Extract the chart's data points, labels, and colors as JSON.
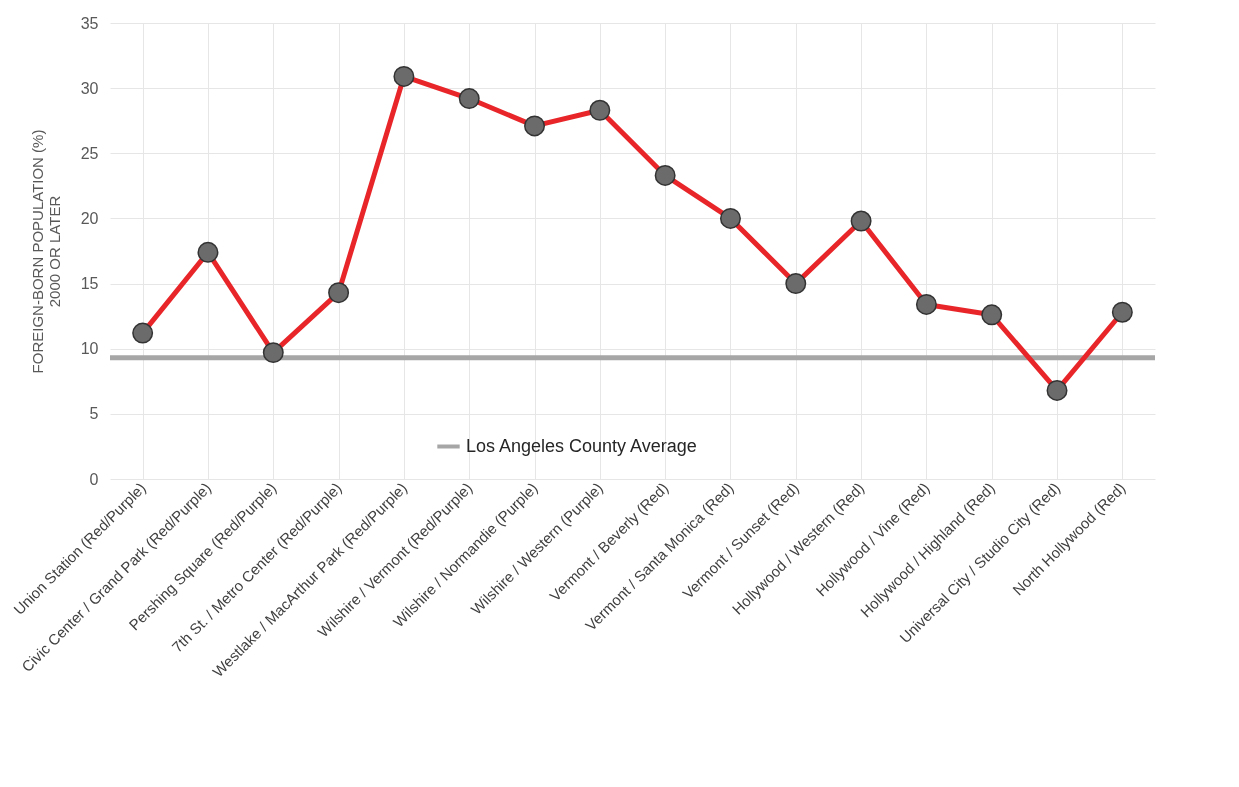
{
  "chart_data": {
    "type": "line",
    "ylabel": "FOREIGN-BORN POPULATION (%)\n2000 OR LATER",
    "categories": [
      "Union Station (Red/Purple)",
      "Civic Center / Grand Park (Red/Purple)",
      "Pershing Square (Red/Purple)",
      "7th St. / Metro Center (Red/Purple)",
      "Westlake / MacArthur Park (Red/Purple)",
      "Wilshire / Vermont (Red/Purple)",
      "Wilshire / Normandie (Purple)",
      "Wilshire / Western (Purple)",
      "Vermont / Beverly (Red)",
      "Vermont / Santa Monica (Red)",
      "Vermont / Sunset (Red)",
      "Hollywood / Western (Red)",
      "Hollywood / Vine (Red)",
      "Hollywood / Highland (Red)",
      "Universal City / Studio City (Red)",
      "North Hollywood (Red)"
    ],
    "series": [
      {
        "color": "#e8262a",
        "values": [
          11.2,
          17.4,
          9.7,
          14.3,
          30.9,
          29.2,
          27.1,
          28.3,
          23.3,
          20.0,
          15.0,
          19.8,
          13.4,
          12.6,
          6.8,
          12.8
        ]
      }
    ],
    "ylim": [
      0,
      35
    ],
    "yticks": [
      0,
      5,
      10,
      15,
      20,
      25,
      30,
      35
    ],
    "grid": true,
    "marker": "circle",
    "legend": "bottom",
    "ref_lines": [
      {
        "axis": "y",
        "value": 9.3,
        "label": "Los Angeles County Average",
        "color": "#a6a6a6"
      }
    ]
  }
}
